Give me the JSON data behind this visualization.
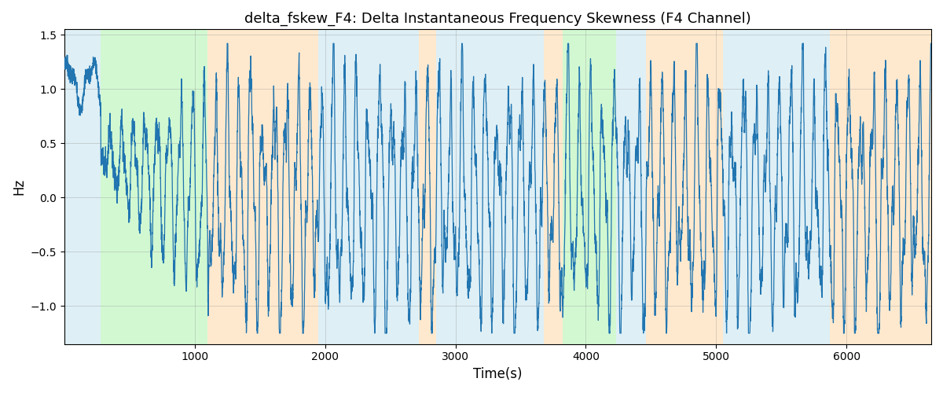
{
  "title": "delta_fskew_F4: Delta Instantaneous Frequency Skewness (F4 Channel)",
  "xlabel": "Time(s)",
  "ylabel": "Hz",
  "ylim": [
    -1.35,
    1.55
  ],
  "xlim": [
    0,
    6650
  ],
  "line_color": "#2175b0",
  "line_width": 0.9,
  "background_regions": [
    {
      "xstart": 0,
      "xend": 280,
      "color": "#add8e6",
      "alpha": 0.4
    },
    {
      "xstart": 280,
      "xend": 1100,
      "color": "#90ee90",
      "alpha": 0.4
    },
    {
      "xstart": 1100,
      "xend": 1950,
      "color": "#ffd59e",
      "alpha": 0.5
    },
    {
      "xstart": 1950,
      "xend": 2720,
      "color": "#add8e6",
      "alpha": 0.4
    },
    {
      "xstart": 2720,
      "xend": 2850,
      "color": "#ffd59e",
      "alpha": 0.5
    },
    {
      "xstart": 2850,
      "xend": 3680,
      "color": "#add8e6",
      "alpha": 0.4
    },
    {
      "xstart": 3680,
      "xend": 3820,
      "color": "#ffd59e",
      "alpha": 0.5
    },
    {
      "xstart": 3820,
      "xend": 4230,
      "color": "#90ee90",
      "alpha": 0.4
    },
    {
      "xstart": 4230,
      "xend": 4460,
      "color": "#add8e6",
      "alpha": 0.4
    },
    {
      "xstart": 4460,
      "xend": 5050,
      "color": "#ffd59e",
      "alpha": 0.5
    },
    {
      "xstart": 5050,
      "xend": 5730,
      "color": "#add8e6",
      "alpha": 0.4
    },
    {
      "xstart": 5730,
      "xend": 5870,
      "color": "#add8e6",
      "alpha": 0.4
    },
    {
      "xstart": 5870,
      "xend": 6650,
      "color": "#ffd59e",
      "alpha": 0.5
    }
  ],
  "title_fontsize": 13,
  "fig_width": 12.0,
  "fig_height": 5.0,
  "dpi": 100
}
